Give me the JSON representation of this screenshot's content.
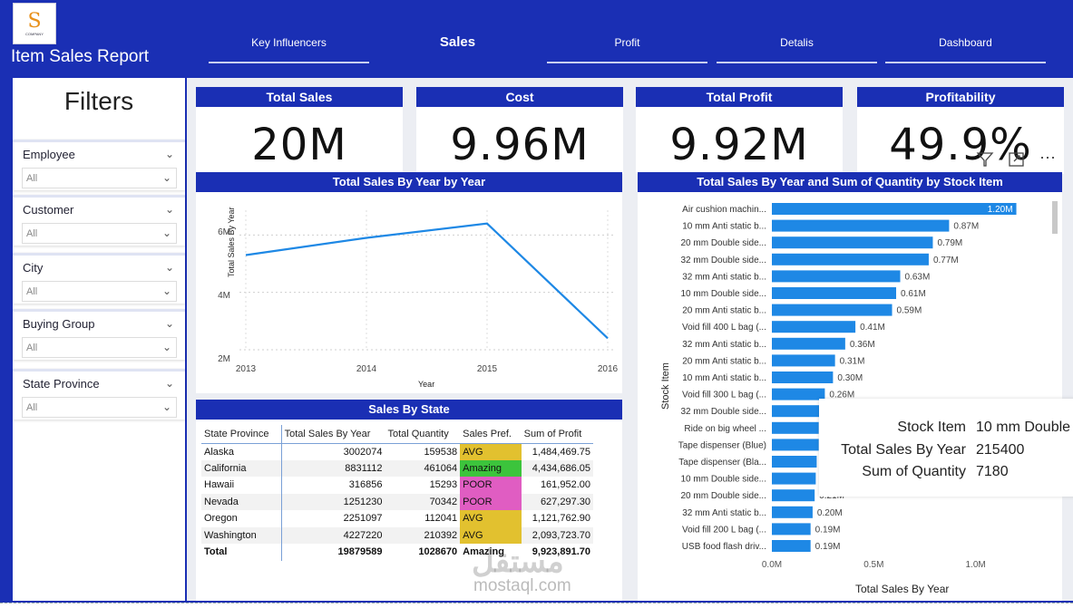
{
  "header": {
    "report_title": "Item Sales Report",
    "logo_text": "COMPANY",
    "nav": [
      {
        "label": "Key Influencers",
        "active": false
      },
      {
        "label": "Sales",
        "active": true
      },
      {
        "label": "Profit",
        "active": false
      },
      {
        "label": "Detalis",
        "active": false
      },
      {
        "label": "Dashboard",
        "active": false
      }
    ]
  },
  "filters": {
    "title": "Filters",
    "slicers": [
      {
        "label": "Employee",
        "value": "All"
      },
      {
        "label": "Customer",
        "value": "All"
      },
      {
        "label": "City",
        "value": "All"
      },
      {
        "label": "Buying Group",
        "value": "All"
      },
      {
        "label": "State Province",
        "value": "All"
      }
    ]
  },
  "kpis": [
    {
      "title": "Total Sales",
      "value": "20M"
    },
    {
      "title": "Cost",
      "value": "9.96M"
    },
    {
      "title": "Total Profit",
      "value": "9.92M"
    },
    {
      "title": "Profitability",
      "value": "49.9%"
    }
  ],
  "line_chart": {
    "title": "Total Sales By Year by Year",
    "xlabel": "Year",
    "ylabel": "Total Sales By Year",
    "y_ticks": [
      "6M",
      "4M",
      "2M"
    ],
    "x_ticks": [
      "2013",
      "2014",
      "2015",
      "2016"
    ]
  },
  "bar_chart": {
    "title": "Total Sales By Year and Sum of Quantity by Stock Item",
    "ylabel": "Stock Item",
    "xlabel": "Total Sales By Year",
    "x_ticks": [
      "0.0M",
      "0.5M",
      "1.0M"
    ],
    "visible_labels": [
      "1.20M",
      "0.87M",
      "0.79M",
      "0.77M",
      "0.63M",
      "0.61M",
      "0.59M",
      "0.41M",
      "0.36M",
      "0.31M",
      "0.30M",
      "0.26M",
      "",
      "",
      "",
      "",
      "",
      "0.21M",
      "0.20M",
      "0.19M",
      "0.19M"
    ]
  },
  "chart_data": [
    {
      "type": "line",
      "title": "Total Sales By Year by Year",
      "xlabel": "Year",
      "ylabel": "Total Sales By Year",
      "x": [
        2013,
        2014,
        2015,
        2016
      ],
      "values": [
        5300000,
        5900000,
        6400000,
        2400000
      ],
      "ylim": [
        2000000,
        6800000
      ],
      "grid": true
    },
    {
      "type": "bar",
      "title": "Total Sales By Year and Sum of Quantity by Stock Item",
      "xlabel": "Total Sales By Year",
      "ylabel": "Stock Item",
      "categories": [
        "Air cushion machin...",
        "10 mm Anti static b...",
        "20 mm Double side...",
        "32 mm Double side...",
        "32 mm Anti static b...",
        "10 mm Double side...",
        "20 mm Anti static b...",
        "Void fill 400 L bag (...",
        "32 mm Anti static b...",
        "20 mm Anti static b...",
        "10 mm Anti static b...",
        "Void fill 300 L bag (...",
        "32 mm Double side...",
        "Ride on big wheel ...",
        "Tape dispenser (Blue)",
        "Tape dispenser (Bla...",
        "10 mm Double side...",
        "20 mm Double side...",
        "32 mm Anti static b...",
        "Void fill 200 L bag (...",
        "USB food flash driv..."
      ],
      "values": [
        1200000,
        870000,
        790000,
        770000,
        630000,
        610000,
        590000,
        410000,
        360000,
        310000,
        300000,
        260000,
        240000,
        230000,
        230000,
        220000,
        215400,
        210000,
        200000,
        190000,
        190000
      ],
      "xlim": [
        0,
        1300000
      ]
    }
  ],
  "state_table": {
    "title": "Sales By State",
    "columns": [
      "State Province",
      "Total Sales By Year",
      "Total Quantity",
      "Sales Pref.",
      "Sum of Profit"
    ],
    "rows": [
      {
        "state": "Alaska",
        "sales": "3002074",
        "qty": "159538",
        "pref": "AVG",
        "profit": "1,484,469.75",
        "pref_color": "#e2c12f"
      },
      {
        "state": "California",
        "sales": "8831112",
        "qty": "461064",
        "pref": "Amazing",
        "profit": "4,434,686.05",
        "pref_color": "#3cc43c"
      },
      {
        "state": "Hawaii",
        "sales": "316856",
        "qty": "15293",
        "pref": "POOR",
        "profit": "161,952.00",
        "pref_color": "#e05dc2"
      },
      {
        "state": "Nevada",
        "sales": "1251230",
        "qty": "70342",
        "pref": "POOR",
        "profit": "627,297.30",
        "pref_color": "#e05dc2"
      },
      {
        "state": "Oregon",
        "sales": "2251097",
        "qty": "112041",
        "pref": "AVG",
        "profit": "1,121,762.90",
        "pref_color": "#e2c12f"
      },
      {
        "state": "Washington",
        "sales": "4227220",
        "qty": "210392",
        "pref": "AVG",
        "profit": "2,093,723.70",
        "pref_color": "#e2c12f"
      }
    ],
    "total": {
      "state": "Total",
      "sales": "19879589",
      "qty": "1028670",
      "pref": "Amazing",
      "profit": "9,923,891.70"
    }
  },
  "tooltip": {
    "rows": [
      {
        "label": "Stock Item",
        "value": "10 mm Double"
      },
      {
        "label": "Total Sales By Year",
        "value": "215400"
      },
      {
        "label": "Sum of Quantity",
        "value": "7180"
      }
    ]
  },
  "watermark": {
    "brand": "مستقل",
    "url": "mostaql.com"
  },
  "colors": {
    "frame": "#1a2fb4",
    "bar": "#1e88e5",
    "line": "#1e88e5"
  }
}
